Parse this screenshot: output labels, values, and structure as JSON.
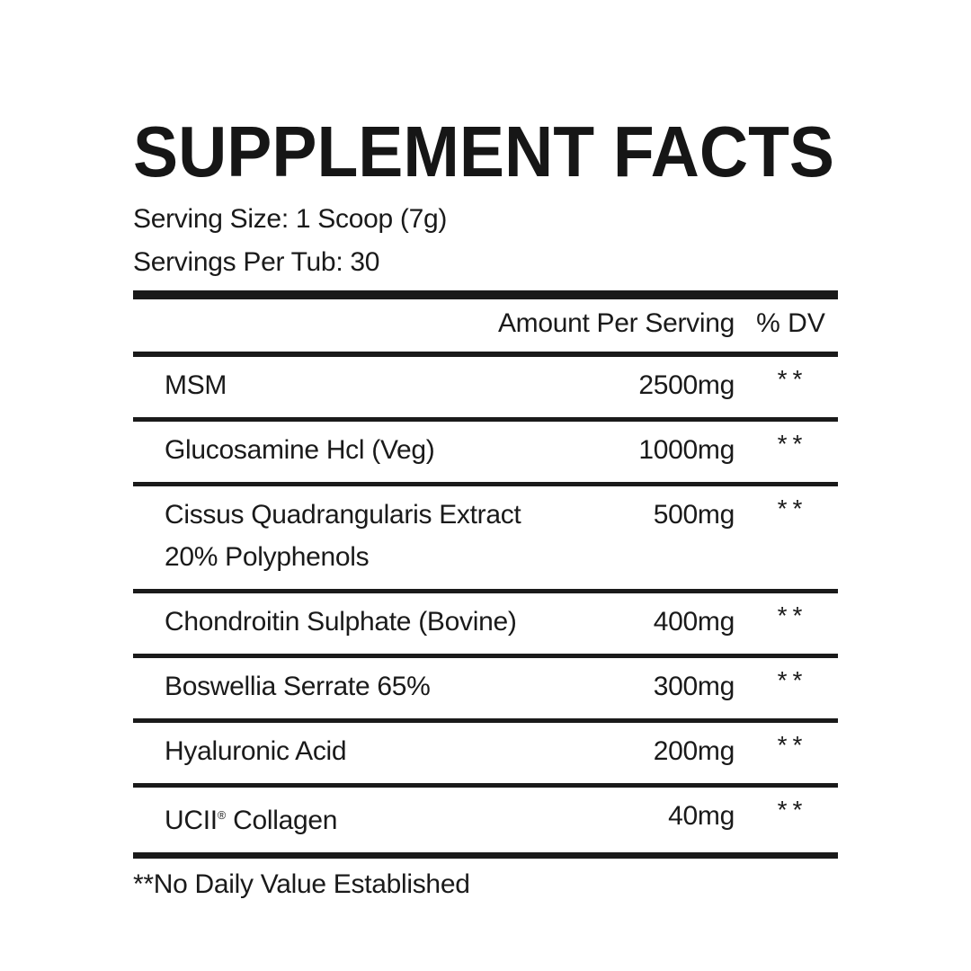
{
  "label": {
    "title": "SUPPLEMENT FACTS",
    "serving_size": "Serving Size: 1 Scoop (7g)",
    "servings_per_tub": "Servings Per Tub: 30",
    "columns": {
      "amount": "Amount Per Serving",
      "dv": "% DV"
    },
    "rows": [
      {
        "name": "MSM",
        "amount": "2500mg",
        "dv": "**"
      },
      {
        "name": "Glucosamine Hcl (Veg)",
        "amount": "1000mg",
        "dv": "**"
      },
      {
        "name": "Cissus Quadrangularis Extract",
        "name2": "20% Polyphenols",
        "amount": "500mg",
        "dv": "**"
      },
      {
        "name": "Chondroitin Sulphate (Bovine)",
        "amount": "400mg",
        "dv": "**"
      },
      {
        "name": "Boswellia Serrate 65%",
        "amount": "300mg",
        "dv": "**"
      },
      {
        "name": "Hyaluronic Acid",
        "amount": "200mg",
        "dv": "**"
      },
      {
        "name": "UCII® Collagen",
        "amount": "40mg",
        "dv": "**"
      }
    ],
    "footnote": "**No Daily Value Established",
    "colors": {
      "text": "#1a1a1a",
      "background": "#ffffff"
    }
  }
}
